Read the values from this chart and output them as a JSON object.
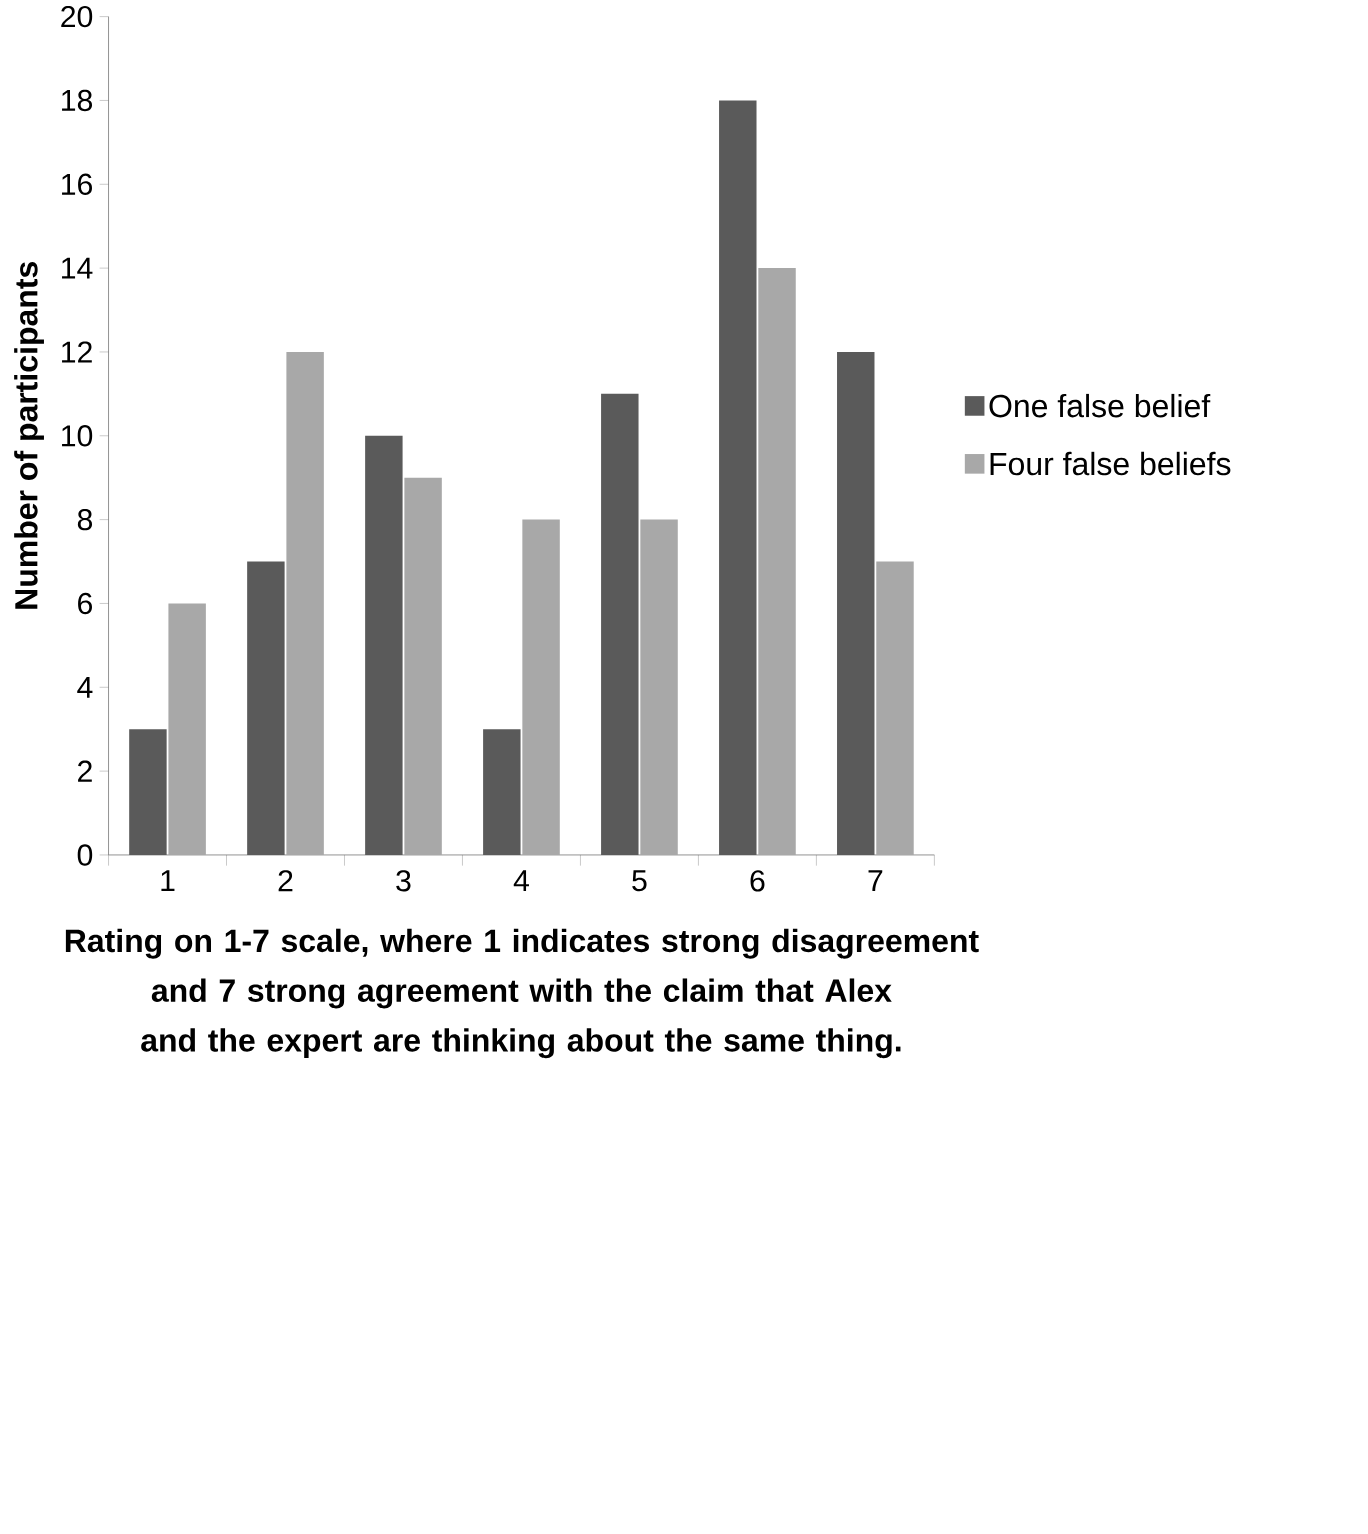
{
  "chart_data": {
    "type": "bar",
    "categories": [
      "1",
      "2",
      "3",
      "4",
      "5",
      "6",
      "7"
    ],
    "series": [
      {
        "name": "One false belief",
        "color": "#5a5a5a",
        "values": [
          3,
          7,
          10,
          3,
          11,
          18,
          12
        ]
      },
      {
        "name": "Four false beliefs",
        "color": "#a8a8a8",
        "values": [
          6,
          12,
          9,
          8,
          8,
          14,
          7
        ]
      }
    ],
    "ylim": [
      0,
      20
    ],
    "yticks": [
      0,
      2,
      4,
      6,
      8,
      10,
      12,
      14,
      16,
      18,
      20
    ],
    "ylabel": "Number of participants",
    "xlabel": "Rating on 1-7 scale, where 1 indicates strong disagreement and 7 strong agreement with the claim that Alex and the expert are thinking about the same thing.",
    "legend": "right"
  }
}
